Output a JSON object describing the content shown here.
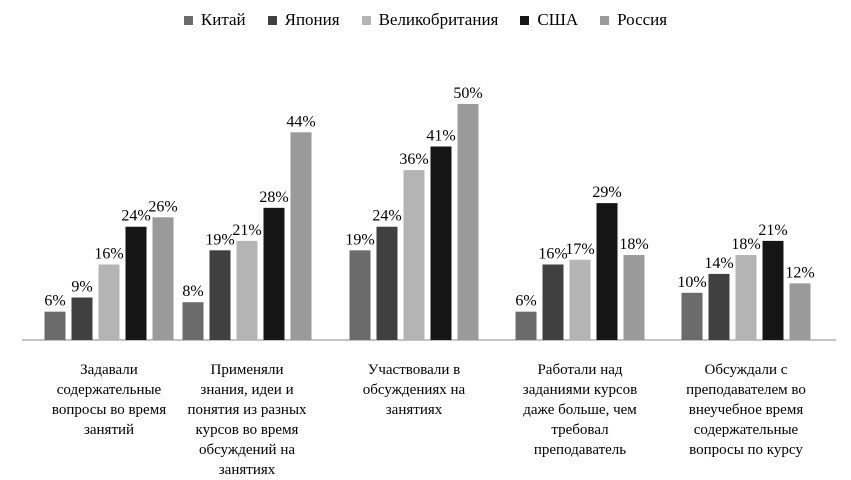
{
  "chart_data": {
    "type": "bar",
    "categories": [
      "Задавали содержательные вопросы во время занятий",
      "Применяли знания, идеи и понятия из разных курсов во время обсуждений на занятиях",
      "Участвовали в обсуждениях на занятиях",
      "Работали над заданиями курсов даже больше, чем требовал преподаватель",
      "Обсуждали с преподавателем во внеучебное время содержательные вопросы по курсу"
    ],
    "category_lines": [
      [
        "Задавали",
        "содержательные",
        "вопросы во время",
        "занятий"
      ],
      [
        "Применяли",
        "знания, идеи и",
        "понятия из разных",
        "курсов во время",
        "обсуждений на",
        "занятиях"
      ],
      [
        "Участвовали в",
        "обсуждениях на",
        "занятиях"
      ],
      [
        "Работали над",
        "заданиями курсов",
        "даже больше, чем",
        "требовал",
        "преподаватель"
      ],
      [
        "Обсуждали с",
        "преподавателем во",
        "внеучебное время",
        "содержательные",
        "вопросы по курсу"
      ]
    ],
    "series": [
      {
        "name": "Китай",
        "color": "#6b6b6b",
        "values": [
          6,
          8,
          19,
          6,
          10
        ]
      },
      {
        "name": "Япония",
        "color": "#404040",
        "values": [
          9,
          19,
          24,
          16,
          14
        ]
      },
      {
        "name": "Великобритания",
        "color": "#b4b4b4",
        "values": [
          16,
          21,
          36,
          17,
          18
        ]
      },
      {
        "name": "США",
        "color": "#151515",
        "values": [
          24,
          28,
          41,
          29,
          21
        ]
      },
      {
        "name": "Россия",
        "color": "#9a9a9a",
        "values": [
          26,
          44,
          50,
          18,
          12
        ]
      }
    ],
    "value_suffix": "%",
    "ylim": [
      0,
      50
    ],
    "grid": false,
    "legend_position": "top"
  }
}
